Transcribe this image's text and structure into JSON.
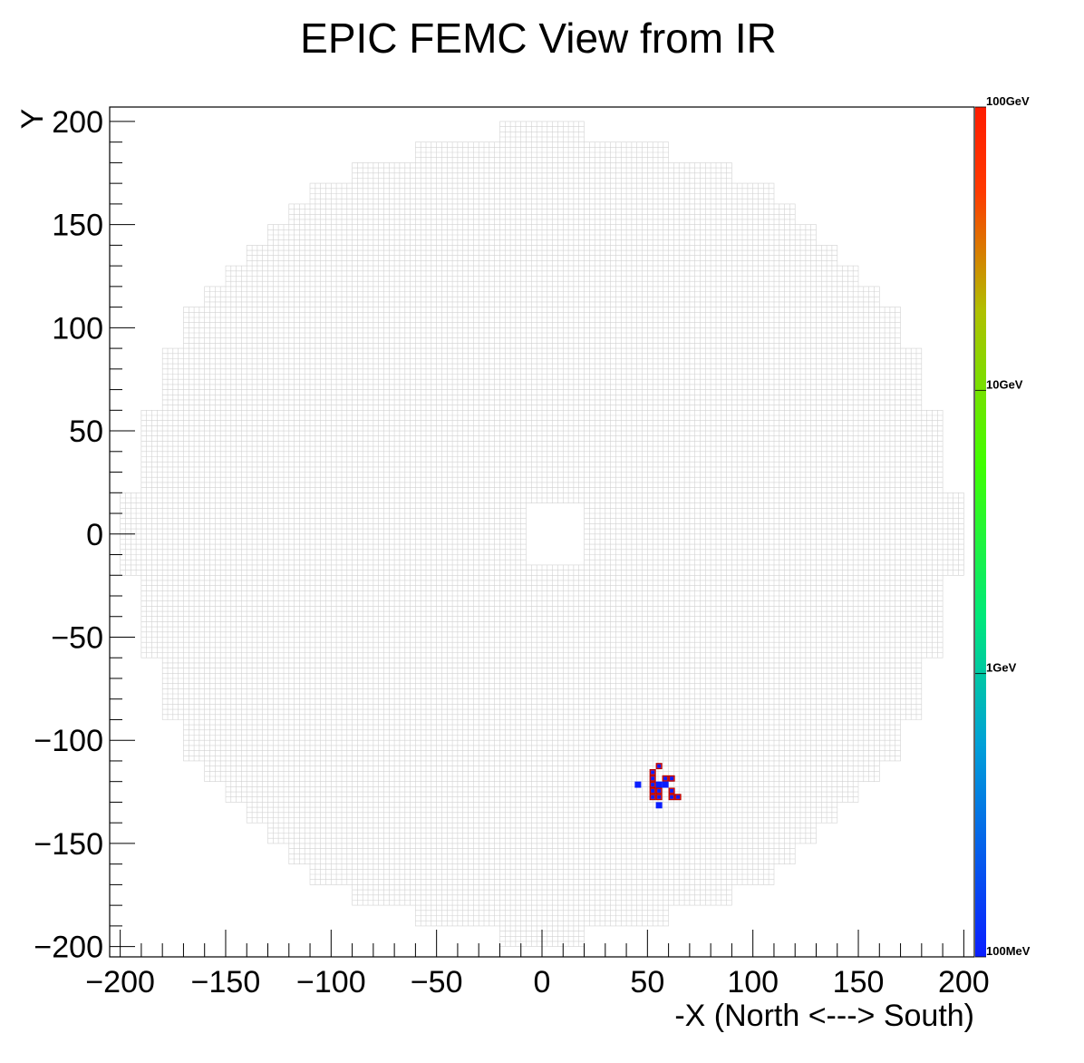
{
  "chart_data": {
    "type": "heatmap",
    "title": "EPIC FEMC View from IR",
    "xlabel": "-X (North <---> South)",
    "ylabel": "Y",
    "xlim": [
      -205,
      205
    ],
    "ylim": [
      -205,
      207
    ],
    "x_ticks": [
      -200,
      -150,
      -100,
      -50,
      0,
      50,
      100,
      150,
      200
    ],
    "y_ticks": [
      -200,
      -150,
      -100,
      -50,
      0,
      50,
      100,
      150,
      200
    ],
    "x_tick_labels": [
      "−200",
      "−150",
      "−100",
      "−50",
      "0",
      "50",
      "100",
      "150",
      "200"
    ],
    "y_tick_labels": [
      "−200",
      "−150",
      "−100",
      "−50",
      "0",
      "50",
      "100",
      "150",
      "200"
    ],
    "colorbar": {
      "scale": "log",
      "labels": [
        "100MeV",
        "1GeV",
        "10GeV",
        "100GeV"
      ],
      "colors": [
        "#0a1eff",
        "#00a0d8",
        "#00e87a",
        "#40ff00",
        "#b0c000",
        "#ff3a00",
        "#ff1c00"
      ]
    },
    "detector": {
      "outer_radius": 196,
      "step": 10,
      "cell_size": 2.5,
      "beam_hole": {
        "x": [
          -7.5,
          20
        ],
        "y": [
          -15,
          15
        ]
      },
      "outline_color": "#d2d2d2"
    },
    "hits": [
      {
        "x": 45.5,
        "y": -121.5,
        "color": "#0a1eff"
      },
      {
        "x": 52.5,
        "y": -115.5,
        "color": "#ff1c00"
      },
      {
        "x": 55.5,
        "y": -112.5,
        "color": "#ff1c00"
      },
      {
        "x": 52.5,
        "y": -118.5,
        "color": "#ff1c00"
      },
      {
        "x": 52.5,
        "y": -121.5,
        "color": "#ff1c00"
      },
      {
        "x": 55.5,
        "y": -121.5,
        "color": "#0a1eff"
      },
      {
        "x": 58.5,
        "y": -118.5,
        "color": "#ff1c00"
      },
      {
        "x": 61.5,
        "y": -118.5,
        "color": "#ff1c00"
      },
      {
        "x": 52.5,
        "y": -124.5,
        "color": "#ff1c00"
      },
      {
        "x": 55.5,
        "y": -124.5,
        "color": "#ff1c00"
      },
      {
        "x": 58.5,
        "y": -121.5,
        "color": "#0a1eff"
      },
      {
        "x": 61.5,
        "y": -124.5,
        "color": "#ff1c00"
      },
      {
        "x": 52.5,
        "y": -127.5,
        "color": "#ff1c00"
      },
      {
        "x": 55.5,
        "y": -127.5,
        "color": "#ff1c00"
      },
      {
        "x": 61.5,
        "y": -127.5,
        "color": "#ff1c00"
      },
      {
        "x": 64.5,
        "y": -127.5,
        "color": "#ff1c00"
      },
      {
        "x": 55.5,
        "y": -131.5,
        "color": "#0a1eff"
      }
    ]
  }
}
